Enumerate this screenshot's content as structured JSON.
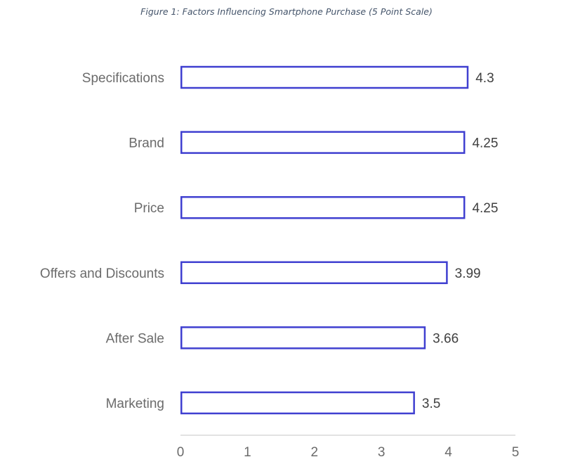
{
  "caption": "Figure 1: Factors Influencing Smartphone Purchase (5 Point Scale)",
  "colors": {
    "bar_outline": "#3f3fd0",
    "bar_fill": "#ffffff",
    "axis": "#d9d9d9"
  },
  "chart_data": {
    "type": "bar",
    "orientation": "horizontal",
    "title": "",
    "xlabel": "",
    "ylabel": "",
    "categories": [
      "Specifications",
      "Brand",
      "Price",
      "Offers and Discounts",
      "After Sale",
      "Marketing"
    ],
    "values": [
      4.3,
      4.25,
      4.25,
      3.99,
      3.66,
      3.5
    ],
    "data_labels": [
      "4.3",
      "4.25",
      "4.25",
      "3.99",
      "3.66",
      "3.5"
    ],
    "xlim": [
      0,
      5
    ],
    "xticks": [
      "0",
      "1",
      "2",
      "3",
      "4",
      "5"
    ],
    "grid": false,
    "legend": "none"
  }
}
